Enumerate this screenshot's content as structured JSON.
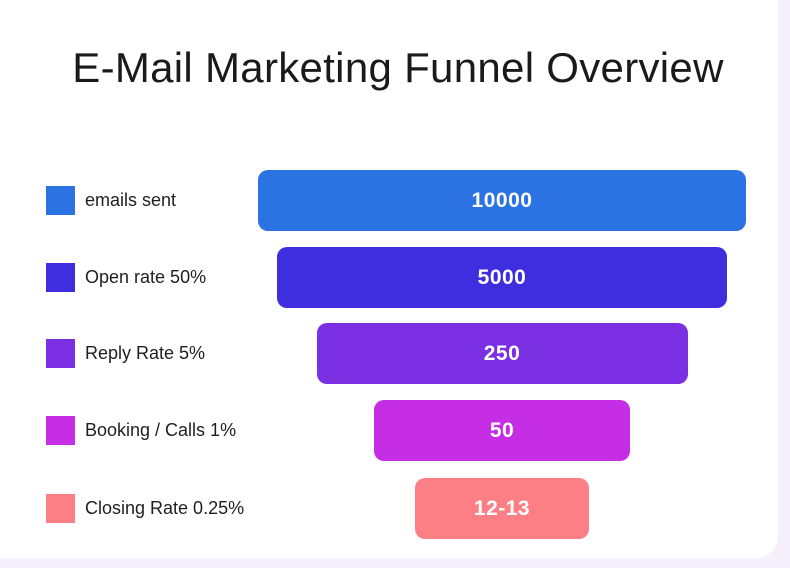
{
  "chart_data": {
    "type": "bar",
    "subtype": "funnel",
    "title": "E-Mail Marketing Funnel Overview",
    "legend_position": "left",
    "stages": [
      {
        "name": "emails sent",
        "label": "10000",
        "value": 10000,
        "color": "#2b73e3"
      },
      {
        "name": "Open rate 50%",
        "label": "5000",
        "value": 5000,
        "color": "#3e2ee0"
      },
      {
        "name": "Reply Rate 5%",
        "label": "250",
        "value": 250,
        "color": "#7a2fe3"
      },
      {
        "name": "Booking / Calls 1%",
        "label": "50",
        "value": 50,
        "color": "#c52ee4"
      },
      {
        "name": "Closing Rate 0.25%",
        "label": "12-13",
        "value": 12.5,
        "color": "#fc7f86"
      }
    ]
  }
}
